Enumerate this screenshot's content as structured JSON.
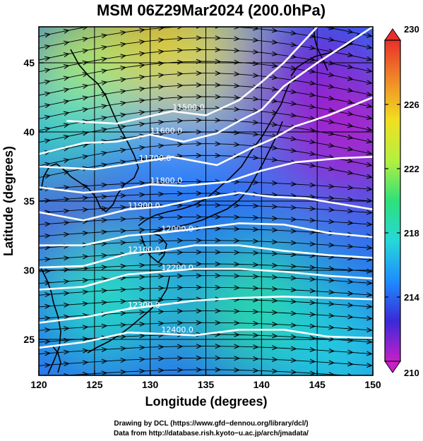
{
  "figure": {
    "title": "MSM 06Z29Mar2024 (200.0hPa)",
    "xlabel": "Longitude (degrees)",
    "ylabel": "Latitude  (degrees)",
    "credit_line1": "Drawing by DCL (https://www.gfd−dennou.org/library/dcl/)",
    "credit_line2": "Data from http://database.rish.kyoto−u.ac.jp/arch/jmadata/"
  },
  "chart_data": {
    "type": "heatmap",
    "title": "MSM 06Z29Mar2024 (200.0hPa)",
    "xlabel": "Longitude (degrees)",
    "ylabel": "Latitude  (degrees)",
    "xlim": [
      120,
      150
    ],
    "ylim": [
      22.4,
      47.6
    ],
    "x_ticks": [
      120,
      125,
      130,
      135,
      140,
      145,
      150
    ],
    "y_ticks": [
      25,
      30,
      35,
      40,
      45
    ],
    "grid": true,
    "colorbar": {
      "range": [
        210,
        230
      ],
      "ticks": [
        210,
        214,
        218,
        222,
        226,
        230
      ],
      "extend": "both",
      "colors": [
        "#c81ec8",
        "#3a2ad8",
        "#1e8cff",
        "#26d8d8",
        "#2ee07a",
        "#b4f040",
        "#f0e020",
        "#f08a28",
        "#e8302a"
      ]
    },
    "color_regions": [
      {
        "lon": 131,
        "lat": 46,
        "value": 227.5
      },
      {
        "lon": 124,
        "lat": 44,
        "value": 223
      },
      {
        "lon": 137,
        "lat": 45,
        "value": 224
      },
      {
        "lon": 143,
        "lat": 44,
        "value": 212
      },
      {
        "lon": 148,
        "lat": 40,
        "value": 210.5
      },
      {
        "lon": 123,
        "lat": 39,
        "value": 218
      },
      {
        "lon": 132,
        "lat": 37,
        "value": 215
      },
      {
        "lon": 124,
        "lat": 33,
        "value": 212
      },
      {
        "lon": 137,
        "lat": 32,
        "value": 214
      },
      {
        "lon": 126,
        "lat": 28,
        "value": 218
      },
      {
        "lon": 140,
        "lat": 27,
        "value": 219
      },
      {
        "lon": 147,
        "lat": 24,
        "value": 217
      }
    ],
    "contour_labels": [
      "11500.0",
      "11600.0",
      "11700.0",
      "11800.0",
      "11900.0",
      "12000.0",
      "12100.0",
      "12200.0",
      "12300.0",
      "12400.0"
    ],
    "contours": [
      {
        "label": "11500.0",
        "points": [
          [
            122.5,
            40.8
          ],
          [
            127,
            40.6
          ],
          [
            132,
            41.5
          ],
          [
            135,
            41.2
          ],
          [
            138,
            42.3
          ],
          [
            140,
            43.6
          ],
          [
            142,
            45
          ],
          [
            143.5,
            46.3
          ],
          [
            145,
            47.6
          ]
        ]
      },
      {
        "label": "11600.0",
        "points": [
          [
            120,
            38.4
          ],
          [
            124,
            39.2
          ],
          [
            127,
            39.3
          ],
          [
            130,
            39.8
          ],
          [
            133,
            39.3
          ],
          [
            136,
            39.9
          ],
          [
            138,
            40.8
          ],
          [
            140,
            41.6
          ],
          [
            142,
            43.3
          ],
          [
            145,
            45
          ],
          [
            150,
            47.6
          ]
        ]
      },
      {
        "label": "11700.0",
        "points": [
          [
            120,
            37.5
          ],
          [
            125,
            37.3
          ],
          [
            129,
            37.8
          ],
          [
            132,
            38.2
          ],
          [
            136,
            37.6
          ],
          [
            139,
            38.8
          ],
          [
            141,
            39.5
          ],
          [
            143,
            40.4
          ],
          [
            146,
            41.2
          ],
          [
            150,
            42.5
          ]
        ]
      },
      {
        "label": "11800.0",
        "points": [
          [
            120,
            36
          ],
          [
            124,
            35.6
          ],
          [
            127,
            35.8
          ],
          [
            130,
            36.2
          ],
          [
            133,
            36.1
          ],
          [
            137,
            36.4
          ],
          [
            140,
            37.2
          ],
          [
            143,
            37.8
          ],
          [
            147,
            38.1
          ],
          [
            150,
            38.2
          ]
        ]
      },
      {
        "label": "11900.0",
        "points": [
          [
            120,
            34.2
          ],
          [
            124,
            33.6
          ],
          [
            128,
            34.4
          ],
          [
            131,
            34.6
          ],
          [
            134,
            35.1
          ],
          [
            138,
            35.6
          ],
          [
            141,
            35.3
          ],
          [
            144,
            35.2
          ],
          [
            147,
            34.8
          ],
          [
            150,
            34.4
          ]
        ]
      },
      {
        "label": "12000.0",
        "points": [
          [
            120,
            31.8
          ],
          [
            124,
            31.8
          ],
          [
            128,
            32.5
          ],
          [
            131,
            32.7
          ],
          [
            134,
            33
          ],
          [
            138,
            33.4
          ],
          [
            142,
            33.3
          ],
          [
            146,
            32.7
          ],
          [
            150,
            32.4
          ]
        ]
      },
      {
        "label": "12100.0",
        "points": [
          [
            120,
            30.2
          ],
          [
            124,
            30.3
          ],
          [
            128,
            31.2
          ],
          [
            131,
            31.4
          ],
          [
            134,
            31.8
          ],
          [
            138,
            31.8
          ],
          [
            142,
            31.4
          ],
          [
            146,
            31.1
          ],
          [
            150,
            30.9
          ]
        ]
      },
      {
        "label": "12200.0",
        "points": [
          [
            120,
            28.6
          ],
          [
            124,
            28.8
          ],
          [
            128,
            29.7
          ],
          [
            131,
            29.9
          ],
          [
            134,
            30.1
          ],
          [
            138,
            30.1
          ],
          [
            142,
            29.9
          ],
          [
            146,
            29.6
          ],
          [
            150,
            29.4
          ]
        ]
      },
      {
        "label": "12300.0",
        "points": [
          [
            120,
            26.2
          ],
          [
            124,
            26.6
          ],
          [
            128,
            27.2
          ],
          [
            131,
            27.5
          ],
          [
            134,
            27.8
          ],
          [
            138,
            28
          ],
          [
            142,
            28.1
          ],
          [
            146,
            28
          ],
          [
            150,
            27.9
          ]
        ]
      },
      {
        "label": "12400.0",
        "points": [
          [
            120,
            24.4
          ],
          [
            124,
            24.8
          ],
          [
            128,
            25.5
          ],
          [
            131,
            25.4
          ],
          [
            134,
            25.3
          ],
          [
            138,
            25.7
          ],
          [
            142,
            25.7
          ],
          [
            146,
            25.2
          ],
          [
            150,
            25.1
          ]
        ]
      }
    ],
    "wind": {
      "style": "streamlines",
      "flow": "westerly",
      "glyph": "arrowhead"
    }
  }
}
